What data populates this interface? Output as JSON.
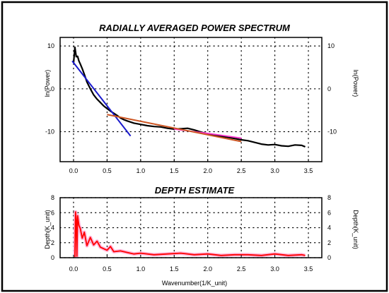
{
  "chart_data": [
    {
      "type": "line",
      "title": "RADIALLY AVERAGED POWER SPECTRUM",
      "xlabel": "",
      "ylabel": "ln(Power)",
      "ylabel_right": "ln(Power)",
      "xlim": [
        -0.2,
        3.7
      ],
      "ylim": [
        -17,
        12
      ],
      "xticks": [
        "0.0",
        "0.5",
        "1.0",
        "1.5",
        "2.0",
        "2.5",
        "3.0",
        "3.5"
      ],
      "yticks": [
        "10",
        "0",
        "-10"
      ],
      "grid": "dotted",
      "series": [
        {
          "color": "#000000",
          "x": [
            0.0,
            0.02,
            0.04,
            0.06,
            0.08,
            0.1,
            0.13,
            0.16,
            0.2,
            0.25,
            0.3,
            0.35,
            0.4,
            0.45,
            0.5,
            0.55,
            0.6,
            0.65,
            0.7,
            0.75,
            0.8,
            0.9,
            1.0,
            1.1,
            1.2,
            1.3,
            1.4,
            1.5,
            1.6,
            1.7,
            1.8,
            1.9,
            2.0,
            2.1,
            2.2,
            2.3,
            2.4,
            2.5,
            2.6,
            2.7,
            2.8,
            2.9,
            3.0,
            3.1,
            3.2,
            3.3,
            3.4,
            3.45
          ],
          "values": [
            6.0,
            9.7,
            7.5,
            7.6,
            6.5,
            5.8,
            4.7,
            3.4,
            1.6,
            0.0,
            -1.4,
            -2.4,
            -3.2,
            -4.0,
            -4.6,
            -5.2,
            -5.7,
            -6.2,
            -6.8,
            -7.2,
            -7.5,
            -8.0,
            -8.3,
            -8.6,
            -8.8,
            -8.9,
            -9.2,
            -9.4,
            -9.3,
            -9.2,
            -9.6,
            -10.1,
            -10.5,
            -10.7,
            -11.1,
            -11.3,
            -11.6,
            -11.9,
            -12.1,
            -12.5,
            -12.9,
            -13.1,
            -13.0,
            -13.3,
            -13.4,
            -13.1,
            -13.2,
            -13.5
          ]
        },
        {
          "color": "#ff33cc",
          "x": [
            1.5,
            2.0,
            2.5
          ],
          "values": [
            -9.4,
            -10.4,
            -11.5
          ]
        }
      ],
      "fit_lines": [
        {
          "color": "#1a1acc",
          "x": [
            -0.02,
            0.85
          ],
          "values": [
            6.5,
            -11.0
          ]
        },
        {
          "color": "#cc5522",
          "x": [
            0.5,
            2.5
          ],
          "values": [
            -6.0,
            -12.3
          ]
        }
      ]
    },
    {
      "type": "line",
      "title": "DEPTH ESTIMATE",
      "xlabel": "Wavenumber(1/K_unit)",
      "ylabel": "Depth(K_unit)",
      "ylabel_right": "Depth(K_unit)",
      "xlim": [
        -0.2,
        3.7
      ],
      "ylim": [
        0,
        8
      ],
      "xticks": [
        "0.0",
        "0.5",
        "1.0",
        "1.5",
        "2.0",
        "2.5",
        "3.0",
        "3.5"
      ],
      "yticks": [
        "0",
        "2",
        "4",
        "6",
        "8"
      ],
      "grid": "dotted",
      "series": [
        {
          "color": "#ff0000",
          "x": [
            0.02,
            0.03,
            0.04,
            0.05,
            0.06,
            0.08,
            0.1,
            0.13,
            0.16,
            0.2,
            0.25,
            0.3,
            0.35,
            0.4,
            0.45,
            0.5,
            0.55,
            0.6,
            0.7,
            0.8,
            0.9,
            1.0,
            1.2,
            1.4,
            1.6,
            1.8,
            2.0,
            2.2,
            2.4,
            2.6,
            2.8,
            3.0,
            3.2,
            3.4,
            3.45
          ],
          "values": [
            0.1,
            6.1,
            5.0,
            0.2,
            5.6,
            4.3,
            3.9,
            2.6,
            3.4,
            1.6,
            2.7,
            1.7,
            2.2,
            1.4,
            1.2,
            1.0,
            1.5,
            0.8,
            0.9,
            0.7,
            0.5,
            0.6,
            0.4,
            0.5,
            0.6,
            0.4,
            0.5,
            0.3,
            0.4,
            0.4,
            0.3,
            0.5,
            0.3,
            0.4,
            0.3
          ]
        }
      ]
    }
  ]
}
